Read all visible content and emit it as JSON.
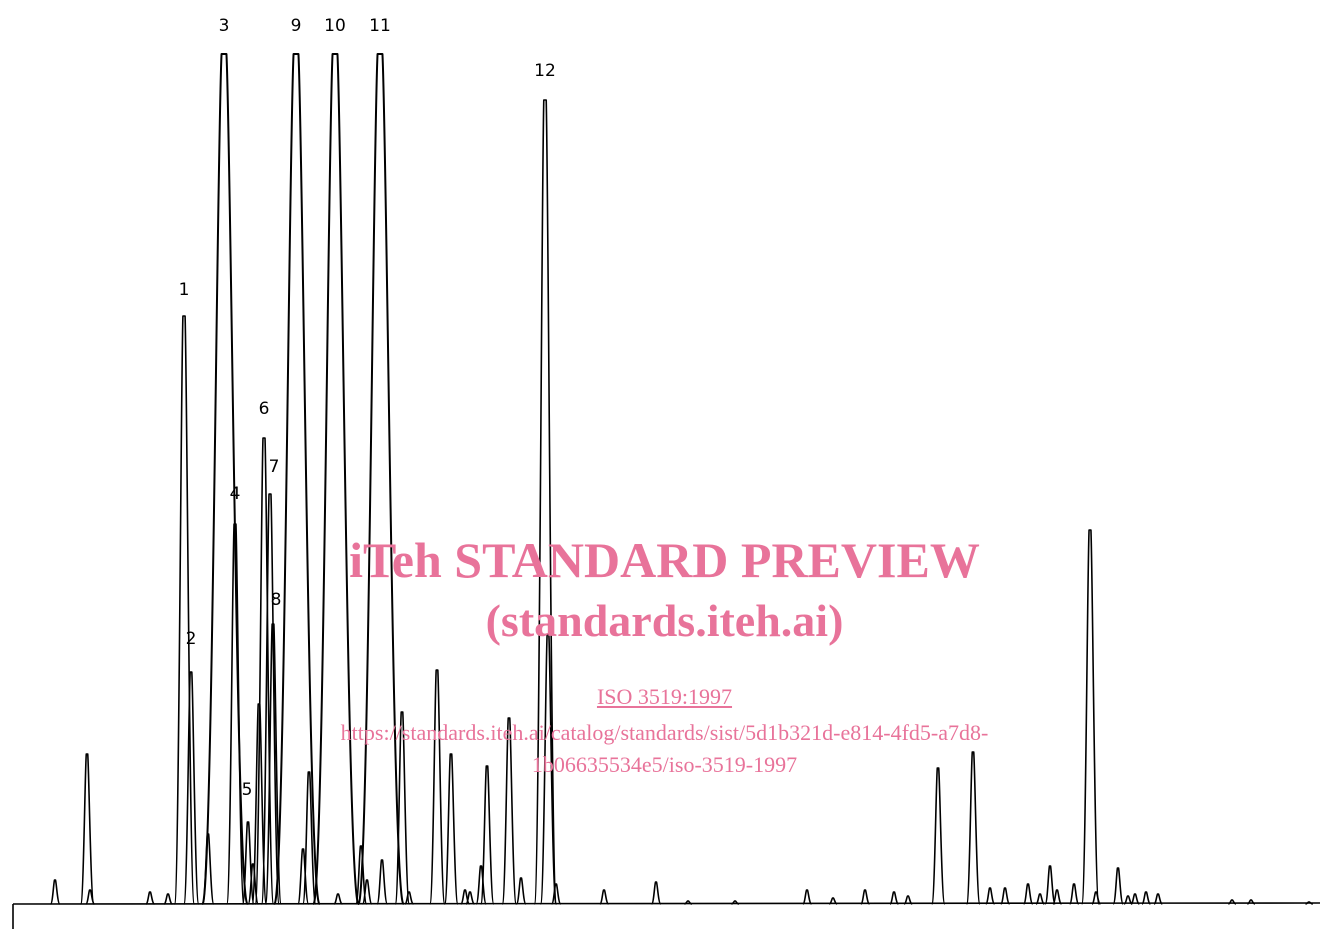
{
  "watermark": {
    "title": "iTeh STANDARD PREVIEW",
    "subtitle": "(standards.iteh.ai)",
    "iso": "ISO 3519:1997",
    "url_line1": "https://standards.iteh.ai/catalog/standards/sist/5d1b321d-e814-4fd5-a7d8-",
    "url_line2": "1b06635534e5/iso-3519-1997"
  },
  "chart_data": {
    "type": "line",
    "title": "",
    "xlabel": "",
    "ylabel": "",
    "xlim": [
      0,
      1329
    ],
    "ylim": [
      0,
      860
    ],
    "grid": false,
    "labeled_peaks": [
      {
        "label": "1",
        "x": 184,
        "height": 588
      },
      {
        "label": "2",
        "x": 191,
        "height": 232
      },
      {
        "label": "3",
        "x": 224,
        "height": 850
      },
      {
        "label": "4",
        "x": 235,
        "height": 380
      },
      {
        "label": "5",
        "x": 248,
        "height": 82
      },
      {
        "label": "6",
        "x": 264,
        "height": 466
      },
      {
        "label": "7",
        "x": 270,
        "height": 410
      },
      {
        "label": "8",
        "x": 273,
        "height": 280
      },
      {
        "label": "9",
        "x": 296,
        "height": 850
      },
      {
        "label": "10",
        "x": 335,
        "height": 850
      },
      {
        "label": "11",
        "x": 380,
        "height": 850
      },
      {
        "label": "12",
        "x": 545,
        "height": 804
      }
    ],
    "minor_peaks": [
      {
        "x": 55,
        "height": 24
      },
      {
        "x": 87,
        "height": 150
      },
      {
        "x": 90,
        "height": 14
      },
      {
        "x": 150,
        "height": 12
      },
      {
        "x": 168,
        "height": 10
      },
      {
        "x": 208,
        "height": 70
      },
      {
        "x": 253,
        "height": 40
      },
      {
        "x": 259,
        "height": 200
      },
      {
        "x": 303,
        "height": 55
      },
      {
        "x": 309,
        "height": 132
      },
      {
        "x": 338,
        "height": 10
      },
      {
        "x": 361,
        "height": 58
      },
      {
        "x": 367,
        "height": 24
      },
      {
        "x": 382,
        "height": 44
      },
      {
        "x": 402,
        "height": 192
      },
      {
        "x": 409,
        "height": 12
      },
      {
        "x": 437,
        "height": 234
      },
      {
        "x": 451,
        "height": 150
      },
      {
        "x": 465,
        "height": 14
      },
      {
        "x": 470,
        "height": 12
      },
      {
        "x": 481,
        "height": 38
      },
      {
        "x": 487,
        "height": 138
      },
      {
        "x": 509,
        "height": 186
      },
      {
        "x": 521,
        "height": 26
      },
      {
        "x": 548,
        "height": 270
      },
      {
        "x": 556,
        "height": 20
      },
      {
        "x": 604,
        "height": 14
      },
      {
        "x": 656,
        "height": 22
      },
      {
        "x": 688,
        "height": 3
      },
      {
        "x": 735,
        "height": 3
      },
      {
        "x": 807,
        "height": 14
      },
      {
        "x": 833,
        "height": 6
      },
      {
        "x": 865,
        "height": 14
      },
      {
        "x": 894,
        "height": 12
      },
      {
        "x": 908,
        "height": 8
      },
      {
        "x": 938,
        "height": 136
      },
      {
        "x": 973,
        "height": 152
      },
      {
        "x": 990,
        "height": 16
      },
      {
        "x": 1005,
        "height": 16
      },
      {
        "x": 1028,
        "height": 20
      },
      {
        "x": 1040,
        "height": 10
      },
      {
        "x": 1050,
        "height": 38
      },
      {
        "x": 1057,
        "height": 14
      },
      {
        "x": 1074,
        "height": 20
      },
      {
        "x": 1090,
        "height": 374
      },
      {
        "x": 1096,
        "height": 12
      },
      {
        "x": 1118,
        "height": 36
      },
      {
        "x": 1128,
        "height": 8
      },
      {
        "x": 1135,
        "height": 10
      },
      {
        "x": 1146,
        "height": 12
      },
      {
        "x": 1158,
        "height": 10
      },
      {
        "x": 1232,
        "height": 4
      },
      {
        "x": 1251,
        "height": 4
      },
      {
        "x": 1309,
        "height": 2
      }
    ]
  }
}
